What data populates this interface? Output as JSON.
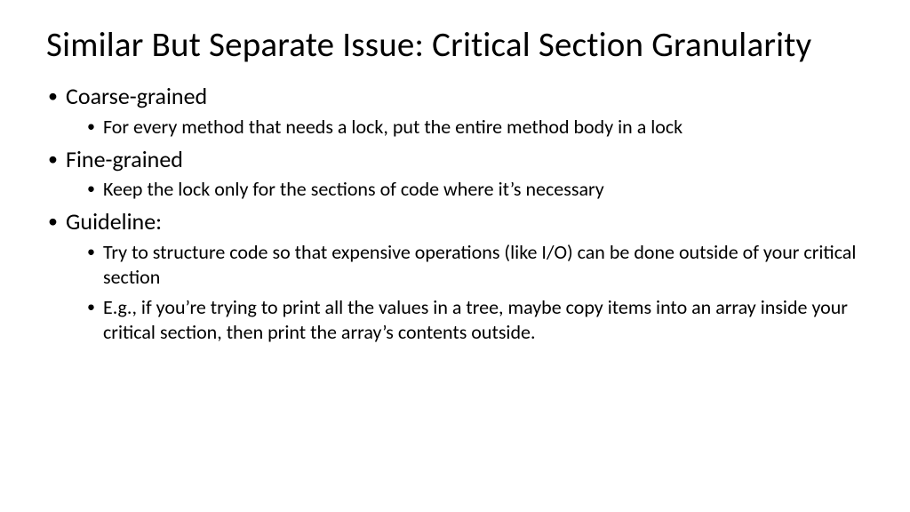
{
  "slide": {
    "background_color": "#ffffff",
    "text_color": "#000000",
    "font_family": "Calibri",
    "title": "Similar But Separate Issue: Critical Section Granularity",
    "title_fontsize": 39,
    "body_level1_fontsize": 26,
    "body_level2_fontsize": 22,
    "bullets": [
      {
        "text": "Coarse-grained",
        "sub": [
          "For every method that needs a lock, put the entire method body in a lock"
        ]
      },
      {
        "text": "Fine-grained",
        "sub": [
          "Keep the lock only for the sections of code where it’s necessary"
        ]
      },
      {
        "text": "Guideline:",
        "sub": [
          "Try to structure code so that expensive operations (like I/O) can be done outside of your critical section",
          "E.g., if you’re trying to print all the values in a tree, maybe copy items into an array inside your critical section, then print the array’s contents outside."
        ]
      }
    ]
  }
}
